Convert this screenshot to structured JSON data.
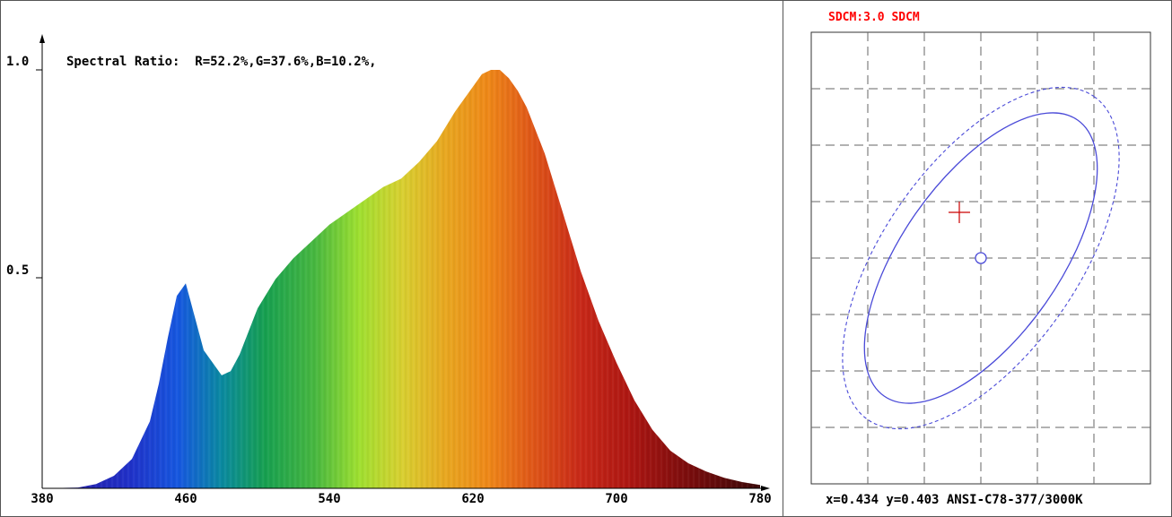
{
  "chart_data": [
    {
      "type": "area",
      "title": "Spectral Ratio:  R=52.2%,G=37.6%,B=10.2%,",
      "xlabel": "",
      "ylabel": "",
      "xlim": [
        380,
        780
      ],
      "ylim": [
        0,
        1.0
      ],
      "x_ticks": [
        "380",
        "460",
        "540",
        "620",
        "700",
        "780"
      ],
      "y_ticks": [
        "0.5",
        "1.0"
      ],
      "fill": "visible-spectrum-gradient",
      "x": [
        380,
        400,
        410,
        420,
        430,
        440,
        445,
        450,
        455,
        460,
        465,
        470,
        475,
        480,
        485,
        490,
        500,
        510,
        520,
        530,
        540,
        550,
        560,
        570,
        580,
        590,
        600,
        610,
        620,
        625,
        630,
        635,
        640,
        645,
        650,
        660,
        670,
        680,
        690,
        700,
        710,
        720,
        730,
        740,
        750,
        760,
        770,
        780
      ],
      "y": [
        0.0,
        0.002,
        0.01,
        0.03,
        0.07,
        0.16,
        0.25,
        0.36,
        0.46,
        0.49,
        0.41,
        0.33,
        0.3,
        0.27,
        0.28,
        0.32,
        0.43,
        0.5,
        0.55,
        0.59,
        0.63,
        0.66,
        0.69,
        0.72,
        0.74,
        0.78,
        0.83,
        0.9,
        0.96,
        0.99,
        1.0,
        1.0,
        0.98,
        0.95,
        0.91,
        0.8,
        0.66,
        0.52,
        0.4,
        0.3,
        0.21,
        0.14,
        0.09,
        0.06,
        0.04,
        0.025,
        0.015,
        0.008
      ]
    },
    {
      "type": "scatter",
      "title": "SDCM:3.0 SDCM",
      "caption": "x=0.434 y=0.403 ANSI-C78-377/3000K",
      "grid": true,
      "grid_columns": 6,
      "grid_rows": 7,
      "measured_point": {
        "x": 0.434,
        "y": 0.403
      },
      "colors": {
        "title": "#ff0000",
        "ellipse": "#3333cc",
        "marker": "#cc0000"
      }
    }
  ]
}
